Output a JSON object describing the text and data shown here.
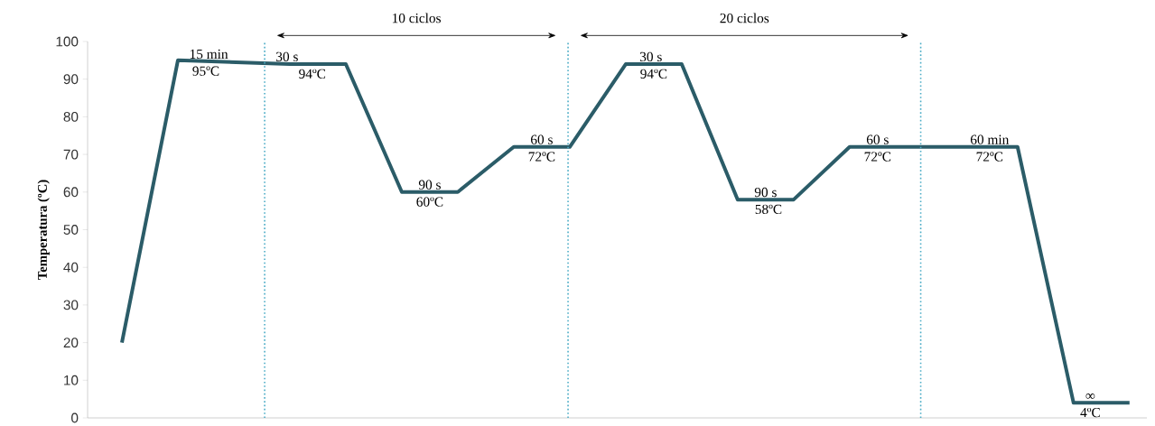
{
  "chart_data": {
    "type": "line",
    "ylabel": "Temperatura (ºC)",
    "categories": [
      null,
      null,
      null,
      null,
      null,
      null,
      null,
      null,
      null,
      null,
      null,
      null,
      null,
      null,
      null,
      null,
      null,
      null,
      null
    ],
    "values": [
      20,
      95,
      94.5,
      94,
      94,
      60,
      60,
      72,
      72,
      94,
      94,
      58,
      58,
      72,
      72,
      72,
      72,
      4,
      4
    ],
    "color": "#2b5c68",
    "marker": "none",
    "line_style": "solid",
    "grid": false,
    "tick_labels": "y",
    "ylim": [
      0,
      100
    ],
    "yticks": [
      0,
      10,
      20,
      30,
      40,
      50,
      60,
      70,
      80,
      90,
      100
    ],
    "annotations": [
      "10 ciclos",
      "20 ciclos",
      "15 min",
      "95ºC",
      "30 s",
      "94ºC",
      "90 s",
      "60ºC",
      "60 s",
      "72ºC",
      "30 s",
      "94ºC",
      "90 s",
      "58ºC",
      "60 s",
      "72ºC",
      "60 min",
      "72ºC",
      "∞",
      "4ºC"
    ]
  }
}
